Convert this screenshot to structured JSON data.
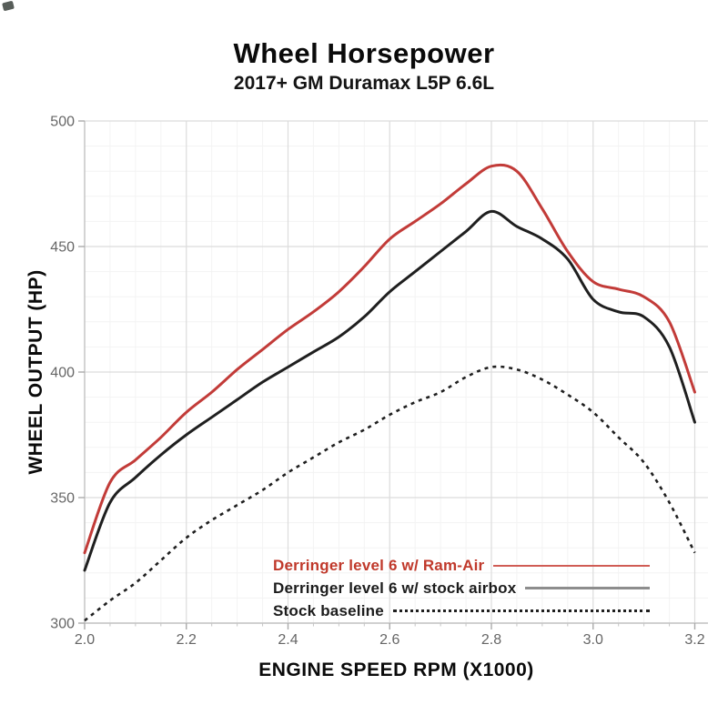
{
  "title": "Wheel Horsepower",
  "subtitle": "2017+ GM Duramax L5P 6.6L",
  "colors": {
    "series_red": "#c23b38",
    "series_black": "#1f1f1f",
    "legend_red_text": "#c0392b",
    "legend_red_sample": "#d05c55",
    "legend_gray_sample": "#8d8d8d",
    "grid_major": "#dcdcdc",
    "grid_minor": "#f3f3f3",
    "axis_line": "#c4c4c4",
    "tick_text": "#666666",
    "axis_title_text": "#0a0a0a"
  },
  "chart_data": {
    "type": "line",
    "title": "Wheel Horsepower",
    "subtitle": "2017+ GM Duramax L5P 6.6L",
    "xlabel": "ENGINE SPEED RPM (X1000)",
    "ylabel": "WHEEL OUTPUT (HP)",
    "xlim": [
      2.0,
      3.2
    ],
    "ylim": [
      300,
      500
    ],
    "x_ticks": [
      "2.0",
      "2.2",
      "2.4",
      "2.6",
      "2.8",
      "3.0",
      "3.2"
    ],
    "y_ticks": [
      "300",
      "350",
      "400",
      "450",
      "500"
    ],
    "grid": "major+minor",
    "legend_position": "inside-bottom-right",
    "x": [
      2.0,
      2.05,
      2.1,
      2.15,
      2.2,
      2.25,
      2.3,
      2.35,
      2.4,
      2.45,
      2.5,
      2.55,
      2.6,
      2.65,
      2.7,
      2.75,
      2.8,
      2.85,
      2.9,
      2.95,
      3.0,
      3.05,
      3.1,
      3.15,
      3.2
    ],
    "series": [
      {
        "name": "Derringer level 6 w/ Ram-Air",
        "style": "solid",
        "color": "#c23b38",
        "width": 3,
        "values": [
          328,
          356,
          365,
          374,
          384,
          392,
          401,
          409,
          417,
          424,
          432,
          442,
          453,
          460,
          467,
          475,
          482,
          480,
          465,
          448,
          436,
          433,
          430,
          420,
          392
        ]
      },
      {
        "name": "Derringer level 6 w/ stock airbox",
        "style": "solid",
        "color": "#1f1f1f",
        "width": 3,
        "values": [
          321,
          348,
          358,
          367,
          375,
          382,
          389,
          396,
          402,
          408,
          414,
          422,
          432,
          440,
          448,
          456,
          464,
          458,
          453,
          445,
          429,
          424,
          422,
          410,
          380
        ]
      },
      {
        "name": "Stock baseline",
        "style": "dashed",
        "color": "#1f1f1f",
        "width": 2.6,
        "values": [
          301,
          309,
          316,
          325,
          334,
          341,
          347,
          353,
          360,
          366,
          372,
          377,
          383,
          388,
          392,
          398,
          402,
          401,
          397,
          391,
          384,
          374,
          364,
          348,
          328
        ]
      }
    ]
  },
  "legend": {
    "sample_styles": [
      "red-sample",
      "gray-sample",
      "dash-sample"
    ]
  }
}
